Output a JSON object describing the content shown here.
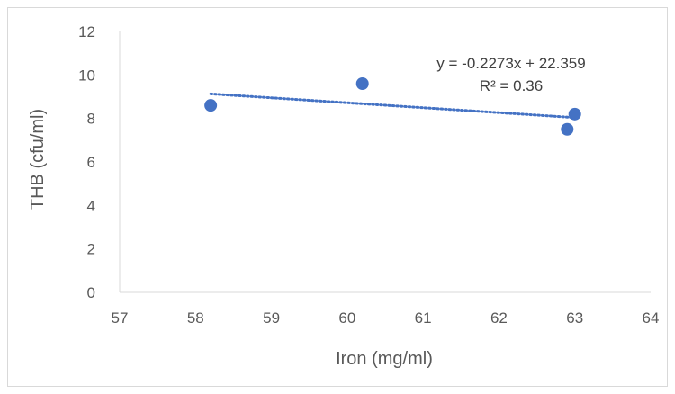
{
  "chart_data": {
    "type": "scatter",
    "title": "",
    "xlabel": "Iron (mg/ml)",
    "ylabel": "THB (cfu/ml)",
    "xlim": [
      57,
      64
    ],
    "ylim": [
      0,
      12
    ],
    "x_ticks": [
      57,
      58,
      59,
      60,
      61,
      62,
      63,
      64
    ],
    "y_ticks": [
      0,
      2,
      4,
      6,
      8,
      10,
      12
    ],
    "grid": false,
    "legend": "none",
    "series": [
      {
        "points": [
          {
            "x": 58.2,
            "y": 8.6
          },
          {
            "x": 60.2,
            "y": 9.6
          },
          {
            "x": 62.9,
            "y": 7.5
          },
          {
            "x": 63.0,
            "y": 8.2
          }
        ],
        "color": "#4472C4"
      }
    ],
    "trendline": {
      "type": "linear",
      "slope": -0.2273,
      "intercept": 22.359,
      "x_range": [
        58.2,
        63.0
      ],
      "style": "dotted",
      "color": "#4472C4",
      "equation_label": "y = -0.2273x + 22.359",
      "r2_label": "R² = 0.36"
    }
  }
}
